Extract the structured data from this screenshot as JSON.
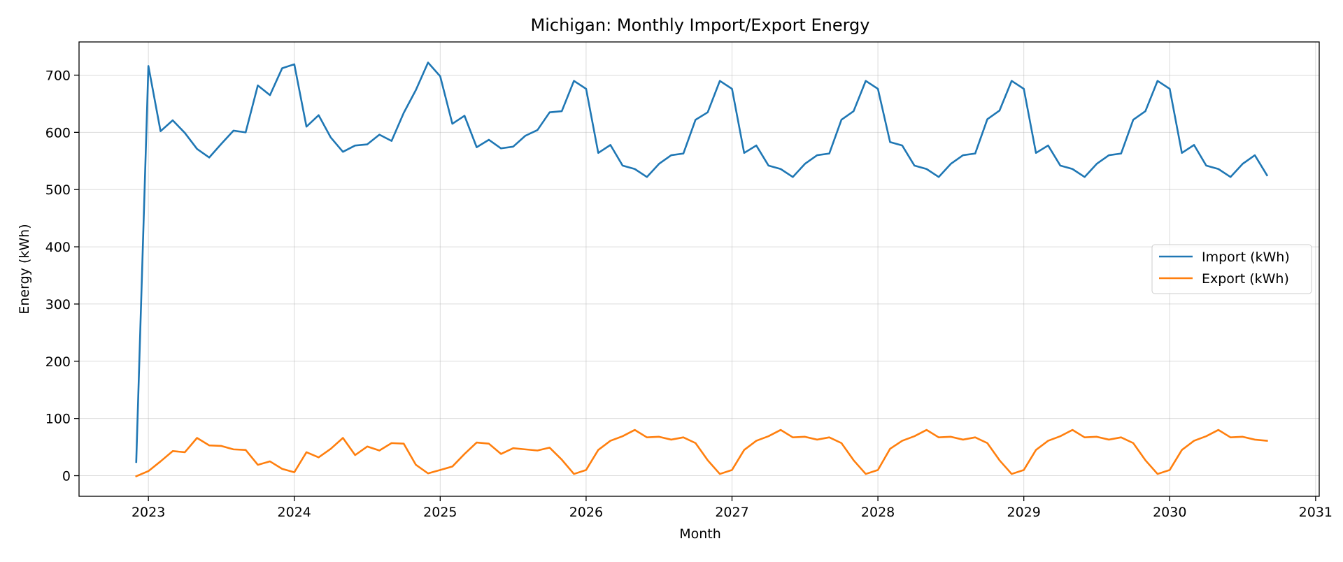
{
  "chart_data": {
    "type": "line",
    "title": "Michigan: Monthly Import/Export Energy",
    "xlabel": "Month",
    "ylabel": "Energy (kWh)",
    "x_tick_labels": [
      "2023",
      "2024",
      "2025",
      "2026",
      "2027",
      "2028",
      "2029",
      "2030",
      "2031"
    ],
    "y_ticks": [
      0,
      100,
      200,
      300,
      400,
      500,
      600,
      700
    ],
    "xlim": [
      "2022-07-10",
      "2031-01-10"
    ],
    "ylim": [
      -36,
      758
    ],
    "grid": true,
    "legend_position": "center-right",
    "x": [
      "2022-12",
      "2023-01",
      "2023-02",
      "2023-03",
      "2023-04",
      "2023-05",
      "2023-06",
      "2023-07",
      "2023-08",
      "2023-09",
      "2023-10",
      "2023-11",
      "2023-12",
      "2024-01",
      "2024-02",
      "2024-03",
      "2024-04",
      "2024-05",
      "2024-06",
      "2024-07",
      "2024-08",
      "2024-09",
      "2024-10",
      "2024-11",
      "2024-12",
      "2025-01",
      "2025-02",
      "2025-03",
      "2025-04",
      "2025-05",
      "2025-06",
      "2025-07",
      "2025-08",
      "2025-09",
      "2025-10",
      "2025-11",
      "2025-12",
      "2026-01",
      "2026-02",
      "2026-03",
      "2026-04",
      "2026-05",
      "2026-06",
      "2026-07",
      "2026-08",
      "2026-09",
      "2026-10",
      "2026-11",
      "2026-12",
      "2027-01",
      "2027-02",
      "2027-03",
      "2027-04",
      "2027-05",
      "2027-06",
      "2027-07",
      "2027-08",
      "2027-09",
      "2027-10",
      "2027-11",
      "2027-12",
      "2028-01",
      "2028-02",
      "2028-03",
      "2028-04",
      "2028-05",
      "2028-06",
      "2028-07",
      "2028-08",
      "2028-09",
      "2028-10",
      "2028-11",
      "2028-12",
      "2029-01",
      "2029-02",
      "2029-03",
      "2029-04",
      "2029-05",
      "2029-06",
      "2029-07",
      "2029-08",
      "2029-09",
      "2029-10",
      "2029-11",
      "2029-12",
      "2030-01",
      "2030-02",
      "2030-03",
      "2030-04",
      "2030-05",
      "2030-06",
      "2030-07",
      "2030-08",
      "2030-09"
    ],
    "series": [
      {
        "name": "Import (kWh)",
        "color": "#1f77b4",
        "values": [
          24,
          716,
          602,
          621,
          599,
          571,
          556,
          580,
          603,
          600,
          682,
          665,
          712,
          719,
          610,
          630,
          591,
          566,
          577,
          579,
          596,
          585,
          634,
          674,
          722,
          698,
          615,
          629,
          574,
          587,
          572,
          575,
          594,
          604,
          635,
          637,
          690,
          676,
          564,
          578,
          542,
          536,
          522,
          545,
          560,
          563,
          622,
          635,
          690,
          676,
          564,
          577,
          542,
          536,
          522,
          545,
          560,
          563,
          622,
          637,
          690,
          676,
          583,
          577,
          542,
          536,
          522,
          545,
          560,
          563,
          623,
          638,
          690,
          676,
          564,
          577,
          542,
          536,
          522,
          545,
          560,
          563,
          622,
          637,
          690,
          676,
          564,
          578,
          542,
          536,
          522,
          545,
          560,
          525
        ]
      },
      {
        "name": "Export (kWh)",
        "color": "#ff7f0e",
        "values": [
          -1,
          8,
          25,
          43,
          41,
          66,
          53,
          52,
          46,
          45,
          19,
          25,
          12,
          6,
          41,
          32,
          47,
          66,
          36,
          51,
          44,
          57,
          56,
          19,
          4,
          10,
          16,
          38,
          58,
          56,
          38,
          48,
          46,
          44,
          49,
          28,
          3,
          10,
          45,
          61,
          69,
          80,
          67,
          68,
          63,
          67,
          57,
          27,
          3,
          10,
          45,
          61,
          69,
          80,
          67,
          68,
          63,
          67,
          57,
          27,
          3,
          10,
          47,
          61,
          69,
          80,
          67,
          68,
          63,
          67,
          57,
          27,
          3,
          10,
          45,
          61,
          69,
          80,
          67,
          68,
          63,
          67,
          57,
          27,
          3,
          10,
          45,
          61,
          69,
          80,
          67,
          68,
          63,
          61
        ]
      }
    ]
  }
}
